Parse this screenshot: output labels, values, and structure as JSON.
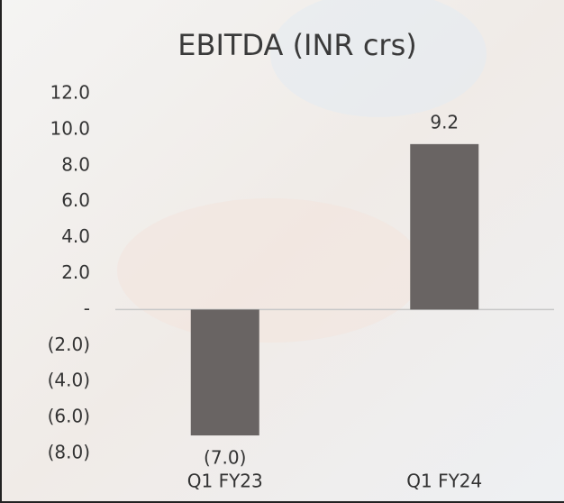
{
  "chart_data": {
    "type": "bar",
    "title": "EBITDA (INR crs)",
    "categories": [
      "Q1 FY23",
      "Q1 FY24"
    ],
    "values": [
      -7.0,
      9.2
    ],
    "value_labels": [
      "(7.0)",
      "9.2"
    ],
    "color": "#696463",
    "ylim": [
      -8,
      12
    ],
    "yticks": [
      {
        "value": -8,
        "label": "(8.0)"
      },
      {
        "value": -6,
        "label": "(6.0)"
      },
      {
        "value": -4,
        "label": "(4.0)"
      },
      {
        "value": -2,
        "label": "(2.0)"
      },
      {
        "value": 0,
        "label": "-"
      },
      {
        "value": 2,
        "label": "2.0"
      },
      {
        "value": 4,
        "label": "4.0"
      },
      {
        "value": 6,
        "label": "6.0"
      },
      {
        "value": 8,
        "label": "8.0"
      },
      {
        "value": 10,
        "label": "10.0"
      },
      {
        "value": 12,
        "label": "12.0"
      }
    ],
    "grid": false
  }
}
